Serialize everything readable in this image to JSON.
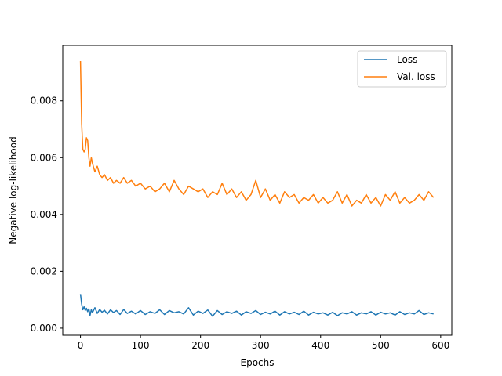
{
  "chart_data": {
    "type": "line",
    "title": "",
    "xlabel": "Epochs",
    "ylabel": "Negative log-likelihood",
    "xlim": [
      -29.5,
      618.5
    ],
    "ylim": [
      -0.00025,
      0.00995
    ],
    "xticks": [
      0,
      100,
      200,
      300,
      400,
      500,
      600
    ],
    "xtick_labels": [
      "0",
      "100",
      "200",
      "300",
      "400",
      "500",
      "600"
    ],
    "yticks": [
      0.0,
      0.002,
      0.004,
      0.006,
      0.008
    ],
    "ytick_labels": [
      "0.000",
      "0.002",
      "0.004",
      "0.006",
      "0.008"
    ],
    "grid": false,
    "legend_position": "top-right",
    "series": [
      {
        "name": "Loss",
        "color": "#1f77b4",
        "x": [
          0,
          2,
          4,
          6,
          8,
          10,
          12,
          14,
          16,
          18,
          20,
          24,
          28,
          32,
          36,
          40,
          45,
          50,
          55,
          60,
          66,
          72,
          78,
          85,
          92,
          100,
          108,
          116,
          124,
          132,
          140,
          148,
          156,
          164,
          172,
          180,
          188,
          196,
          204,
          212,
          220,
          228,
          236,
          244,
          252,
          260,
          268,
          276,
          284,
          292,
          300,
          308,
          316,
          324,
          332,
          340,
          348,
          356,
          364,
          372,
          380,
          388,
          396,
          404,
          412,
          420,
          428,
          436,
          444,
          452,
          460,
          468,
          476,
          484,
          492,
          500,
          508,
          516,
          524,
          532,
          540,
          548,
          556,
          564,
          572,
          580,
          588
        ],
        "y": [
          0.0012,
          0.00085,
          0.00065,
          0.00075,
          0.00062,
          0.0007,
          0.00058,
          0.00068,
          0.00045,
          0.00065,
          0.00055,
          0.00072,
          0.00052,
          0.00066,
          0.00056,
          0.00063,
          0.0005,
          0.00065,
          0.00055,
          0.00062,
          0.00048,
          0.00066,
          0.00052,
          0.0006,
          0.0005,
          0.00062,
          0.00048,
          0.00058,
          0.00052,
          0.00065,
          0.00048,
          0.00062,
          0.00054,
          0.00058,
          0.0005,
          0.00072,
          0.00046,
          0.0006,
          0.00052,
          0.00064,
          0.00042,
          0.00062,
          0.00048,
          0.00058,
          0.00052,
          0.0006,
          0.00046,
          0.00058,
          0.00052,
          0.00062,
          0.00048,
          0.00056,
          0.0005,
          0.0006,
          0.00046,
          0.00058,
          0.0005,
          0.00056,
          0.00048,
          0.0006,
          0.00046,
          0.00056,
          0.0005,
          0.00054,
          0.00046,
          0.00056,
          0.00044,
          0.00054,
          0.0005,
          0.00058,
          0.00046,
          0.00054,
          0.0005,
          0.00058,
          0.00046,
          0.00056,
          0.0005,
          0.00054,
          0.00046,
          0.00058,
          0.00048,
          0.00054,
          0.0005,
          0.00062,
          0.00048,
          0.00054,
          0.0005
        ]
      },
      {
        "name": "Val. loss",
        "color": "#ff7f0e",
        "x": [
          0,
          2,
          4,
          6,
          8,
          10,
          12,
          14,
          16,
          18,
          20,
          24,
          28,
          32,
          36,
          40,
          45,
          50,
          55,
          60,
          66,
          72,
          78,
          85,
          92,
          100,
          108,
          116,
          124,
          132,
          140,
          148,
          156,
          164,
          172,
          180,
          188,
          196,
          204,
          212,
          220,
          228,
          236,
          244,
          252,
          260,
          268,
          276,
          284,
          292,
          300,
          308,
          316,
          324,
          332,
          340,
          348,
          356,
          364,
          372,
          380,
          388,
          396,
          404,
          412,
          420,
          428,
          436,
          444,
          452,
          460,
          468,
          476,
          484,
          492,
          500,
          508,
          516,
          524,
          532,
          540,
          548,
          556,
          564,
          572,
          580,
          588
        ],
        "y": [
          0.0094,
          0.0072,
          0.0063,
          0.0062,
          0.0063,
          0.0067,
          0.0066,
          0.006,
          0.0057,
          0.006,
          0.0058,
          0.0055,
          0.0057,
          0.0054,
          0.0053,
          0.0054,
          0.0052,
          0.0053,
          0.0051,
          0.0052,
          0.0051,
          0.0053,
          0.0051,
          0.0052,
          0.005,
          0.0051,
          0.0049,
          0.005,
          0.0048,
          0.0049,
          0.0051,
          0.0048,
          0.0052,
          0.0049,
          0.0047,
          0.005,
          0.0049,
          0.0048,
          0.0049,
          0.0046,
          0.0048,
          0.0047,
          0.0051,
          0.0047,
          0.0049,
          0.0046,
          0.0048,
          0.0045,
          0.0047,
          0.0052,
          0.0046,
          0.0049,
          0.0045,
          0.0047,
          0.0044,
          0.0048,
          0.0046,
          0.0047,
          0.0044,
          0.0046,
          0.0045,
          0.0047,
          0.0044,
          0.0046,
          0.0044,
          0.0045,
          0.0048,
          0.0044,
          0.0047,
          0.0043,
          0.0045,
          0.0044,
          0.0047,
          0.0044,
          0.0046,
          0.0043,
          0.0047,
          0.0045,
          0.0048,
          0.0044,
          0.0046,
          0.0044,
          0.0045,
          0.0047,
          0.0045,
          0.0048,
          0.0046
        ]
      }
    ]
  }
}
